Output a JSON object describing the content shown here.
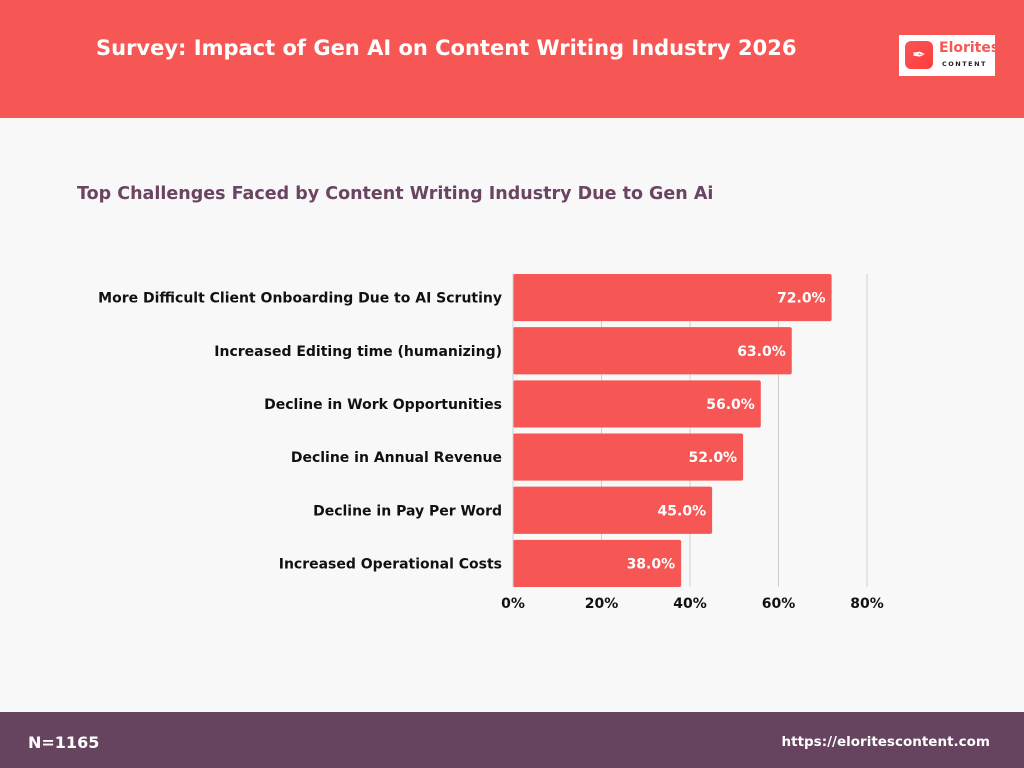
{
  "header": {
    "title": "Survey: Impact of Gen AI on Content Writing Industry 2026"
  },
  "logo": {
    "name": "Elorites",
    "sub": "CONTENT",
    "icon": "pen-nib-icon"
  },
  "colors": {
    "header": "#f75754",
    "bar": "#f75754",
    "footer": "#66445f",
    "title": "#6b4462"
  },
  "chart_data": {
    "type": "bar",
    "orientation": "horizontal",
    "title": "Top Challenges Faced by Content Writing Industry Due to Gen Ai",
    "categories": [
      "More Difficult Client Onboarding Due to AI Scrutiny",
      "Increased Editing time (humanizing)",
      "Decline in Work Opportunities",
      "Decline in Annual Revenue",
      "Decline in Pay Per Word",
      "Increased Operational Costs"
    ],
    "values": [
      72.0,
      63.0,
      56.0,
      52.0,
      45.0,
      38.0
    ],
    "data_labels": [
      "72.0%",
      "63.0%",
      "56.0%",
      "52.0%",
      "45.0%",
      "38.0%"
    ],
    "xlim": [
      0,
      80
    ],
    "xticks": [
      "0%",
      "20%",
      "40%",
      "60%",
      "80%"
    ],
    "grid": true,
    "xlabel": "",
    "ylabel": ""
  },
  "footer": {
    "sample": "N=1165",
    "url": "https://eloritescontent.com"
  }
}
